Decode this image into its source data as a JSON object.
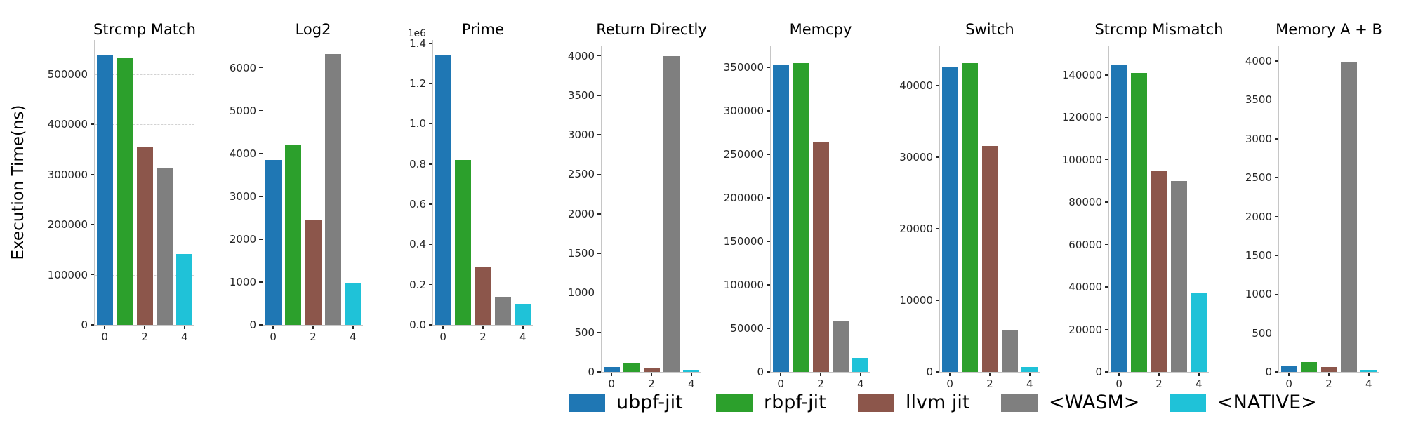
{
  "figure": {
    "ylabel": "Execution Time(ns)",
    "background": "#ffffff",
    "series": [
      {
        "name": "ubpf-jit",
        "color": "#1f77b4"
      },
      {
        "name": "rbpf-jit",
        "color": "#2ca02c"
      },
      {
        "name": "llvm jit",
        "color": "#8c564b"
      },
      {
        "name": "<WASM>",
        "color": "#7f7f7f"
      },
      {
        "name": "<NATIVE>",
        "color": "#1fc2d8"
      }
    ]
  },
  "chart_data": [
    {
      "type": "bar",
      "title": "Strcmp Match",
      "categories": [
        "ubpf-jit",
        "rbpf-jit",
        "llvm jit",
        "<WASM>",
        "<NATIVE>"
      ],
      "values": [
        539000,
        532000,
        354000,
        314000,
        141000
      ],
      "ylim": [
        0,
        568000
      ],
      "ytick_values": [
        0,
        100000,
        200000,
        300000,
        400000,
        500000
      ],
      "ytick_labels": [
        "0",
        "100000",
        "200000",
        "300000",
        "400000",
        "500000"
      ],
      "xtick_positions": [
        0,
        2,
        4
      ],
      "xtick_labels": [
        "0",
        "2",
        "4"
      ],
      "grid": true
    },
    {
      "type": "bar",
      "title": "Log2",
      "categories": [
        "ubpf-jit",
        "rbpf-jit",
        "llvm jit",
        "<WASM>",
        "<NATIVE>"
      ],
      "values": [
        3850,
        4200,
        2450,
        6330,
        970
      ],
      "ylim": [
        0,
        6650
      ],
      "ytick_values": [
        0,
        1000,
        2000,
        3000,
        4000,
        5000,
        6000
      ],
      "ytick_labels": [
        "0",
        "1000",
        "2000",
        "3000",
        "4000",
        "5000",
        "6000"
      ],
      "xtick_positions": [
        0,
        2,
        4
      ],
      "xtick_labels": [
        "0",
        "2",
        "4"
      ],
      "grid": false
    },
    {
      "type": "bar",
      "title": "Prime",
      "categories": [
        "ubpf-jit",
        "rbpf-jit",
        "llvm jit",
        "<WASM>",
        "<NATIVE>"
      ],
      "values": [
        1345000,
        820000,
        290000,
        140000,
        105000
      ],
      "ylim": [
        0,
        1417000
      ],
      "ytick_values": [
        0,
        200000,
        400000,
        600000,
        800000,
        1000000,
        1200000,
        1400000
      ],
      "ytick_labels": [
        "0.0",
        "0.2",
        "0.4",
        "0.6",
        "0.8",
        "1.0",
        "1.2",
        "1.4"
      ],
      "offset_text": "1e6",
      "xtick_positions": [
        0,
        2,
        4
      ],
      "xtick_labels": [
        "0",
        "2",
        "4"
      ],
      "grid": false
    },
    {
      "type": "bar",
      "title": "Return Directly",
      "categories": [
        "ubpf-jit",
        "rbpf-jit",
        "llvm jit",
        "<WASM>",
        "<NATIVE>"
      ],
      "values": [
        65,
        115,
        48,
        4000,
        25
      ],
      "ylim": [
        0,
        4120
      ],
      "ytick_values": [
        0,
        500,
        1000,
        1500,
        2000,
        2500,
        3000,
        3500,
        4000
      ],
      "ytick_labels": [
        "0",
        "500",
        "1000",
        "1500",
        "2000",
        "2500",
        "3000",
        "3500",
        "4000"
      ],
      "xtick_positions": [
        0,
        2,
        4
      ],
      "xtick_labels": [
        "0",
        "2",
        "4"
      ],
      "grid": false
    },
    {
      "type": "bar",
      "title": "Memcpy",
      "categories": [
        "ubpf-jit",
        "rbpf-jit",
        "llvm jit",
        "<WASM>",
        "<NATIVE>"
      ],
      "values": [
        353000,
        355000,
        264000,
        59000,
        16000
      ],
      "ylim": [
        0,
        374000
      ],
      "ytick_values": [
        0,
        50000,
        100000,
        150000,
        200000,
        250000,
        300000,
        350000
      ],
      "ytick_labels": [
        "0",
        "50000",
        "100000",
        "150000",
        "200000",
        "250000",
        "300000",
        "350000"
      ],
      "xtick_positions": [
        0,
        2,
        4
      ],
      "xtick_labels": [
        "0",
        "2",
        "4"
      ],
      "grid": false
    },
    {
      "type": "bar",
      "title": "Switch",
      "categories": [
        "ubpf-jit",
        "rbpf-jit",
        "llvm jit",
        "<WASM>",
        "<NATIVE>"
      ],
      "values": [
        42600,
        43100,
        31600,
        5800,
        700
      ],
      "ylim": [
        0,
        45500
      ],
      "ytick_values": [
        0,
        10000,
        20000,
        30000,
        40000
      ],
      "ytick_labels": [
        "0",
        "10000",
        "20000",
        "30000",
        "40000"
      ],
      "xtick_positions": [
        0,
        2,
        4
      ],
      "xtick_labels": [
        "0",
        "2",
        "4"
      ],
      "grid": false
    },
    {
      "type": "bar",
      "title": "Strcmp Mismatch",
      "categories": [
        "ubpf-jit",
        "rbpf-jit",
        "llvm jit",
        "<WASM>",
        "<NATIVE>"
      ],
      "values": [
        145000,
        141000,
        95000,
        90000,
        37000
      ],
      "ylim": [
        0,
        153500
      ],
      "ytick_values": [
        0,
        20000,
        40000,
        60000,
        80000,
        100000,
        120000,
        140000
      ],
      "ytick_labels": [
        "0",
        "20000",
        "40000",
        "60000",
        "80000",
        "100000",
        "120000",
        "140000"
      ],
      "xtick_positions": [
        0,
        2,
        4
      ],
      "xtick_labels": [
        "0",
        "2",
        "4"
      ],
      "grid": false
    },
    {
      "type": "bar",
      "title": "Memory A + B",
      "categories": [
        "ubpf-jit",
        "rbpf-jit",
        "llvm jit",
        "<WASM>",
        "<NATIVE>"
      ],
      "values": [
        70,
        125,
        65,
        3980,
        30
      ],
      "ylim": [
        0,
        4190
      ],
      "ytick_values": [
        0,
        500,
        1000,
        1500,
        2000,
        2500,
        3000,
        3500,
        4000
      ],
      "ytick_labels": [
        "0",
        "500",
        "1000",
        "1500",
        "2000",
        "2500",
        "3000",
        "3500",
        "4000"
      ],
      "xtick_positions": [
        0,
        2,
        4
      ],
      "xtick_labels": [
        "0",
        "2",
        "4"
      ],
      "grid": false
    }
  ],
  "legend": {
    "position": "bottom",
    "entries": [
      "ubpf-jit",
      "rbpf-jit",
      "llvm jit",
      "<WASM>",
      "<NATIVE>"
    ]
  }
}
